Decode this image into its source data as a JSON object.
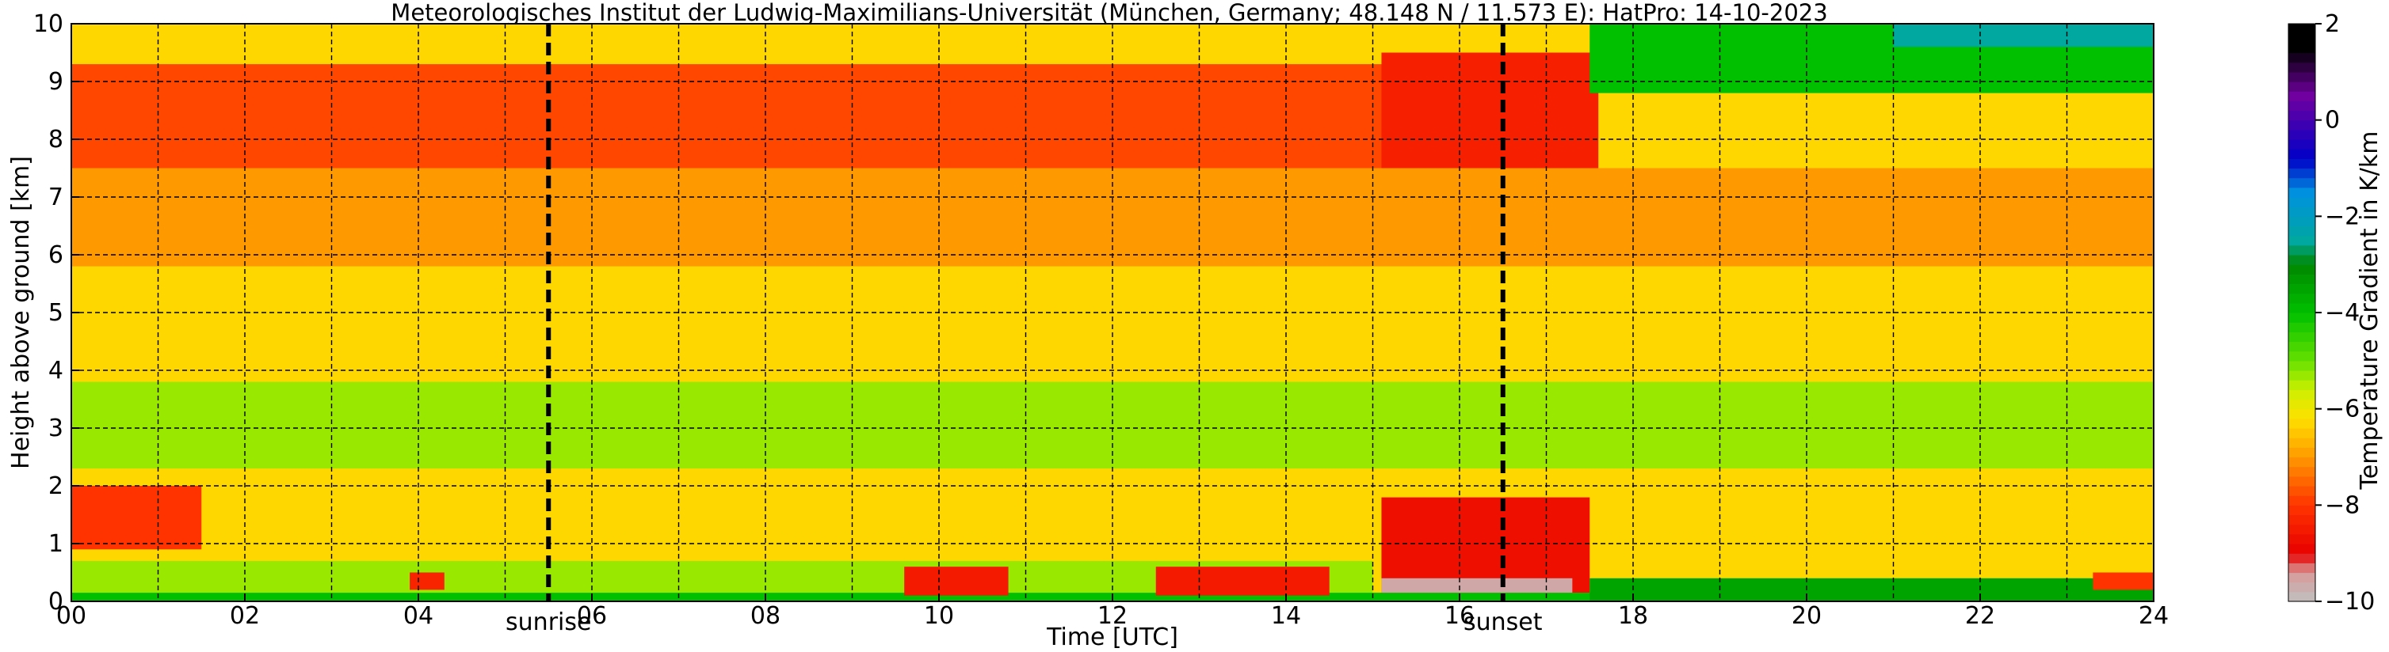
{
  "chart_data": {
    "type": "heatmap",
    "title": "Meteorologisches Institut der Ludwig-Maximilians-Universität (München, Germany; 48.148 N / 11.573 E):    HatPro: 14-10-2023",
    "xlabel": "Time [UTC]",
    "ylabel": "Height above ground [km]",
    "xlim": [
      0,
      24
    ],
    "ylim": [
      0,
      10
    ],
    "x_ticks": [
      "00",
      "02",
      "04",
      "06",
      "08",
      "10",
      "12",
      "14",
      "16",
      "18",
      "20",
      "22",
      "24"
    ],
    "y_ticks": [
      "0",
      "1",
      "2",
      "3",
      "4",
      "5",
      "6",
      "7",
      "8",
      "9",
      "10"
    ],
    "grid": true,
    "markers": [
      {
        "label": "sunrise",
        "x": 5.5
      },
      {
        "label": "sunset",
        "x": 16.5
      }
    ],
    "colorbar": {
      "label": "Temperature Gradient in K/km",
      "range": [
        -10,
        2
      ],
      "ticks": [
        "2",
        "0",
        "−2",
        "−4",
        "−6",
        "−8",
        "−10"
      ],
      "colors": [
        {
          "v": -10,
          "c": "#c0c0c0"
        },
        {
          "v": -9.4,
          "c": "#d89a9a"
        },
        {
          "v": -9.0,
          "c": "#e80000"
        },
        {
          "v": -8.0,
          "c": "#ff3300"
        },
        {
          "v": -7.0,
          "c": "#ff9900"
        },
        {
          "v": -6.2,
          "c": "#ffe000"
        },
        {
          "v": -5.6,
          "c": "#ccf000"
        },
        {
          "v": -5.0,
          "c": "#66e000"
        },
        {
          "v": -4.0,
          "c": "#00c000"
        },
        {
          "v": -3.0,
          "c": "#008800"
        },
        {
          "v": -2.5,
          "c": "#00a8a0"
        },
        {
          "v": -1.5,
          "c": "#0090e0"
        },
        {
          "v": -0.8,
          "c": "#0000c8"
        },
        {
          "v": 0.5,
          "c": "#7000a0"
        },
        {
          "v": 1.5,
          "c": "#000000"
        }
      ]
    },
    "field": {
      "description_of_values": "temperature gradient (K/km) by time (h UTC) and height (km)",
      "regions": [
        {
          "t": [
            0,
            24
          ],
          "h": [
            0,
            10
          ],
          "value": -6.3
        },
        {
          "t": [
            0,
            24
          ],
          "h": [
            0,
            0.15
          ],
          "value": -4.0
        },
        {
          "t": [
            0,
            15
          ],
          "h": [
            0.15,
            0.7
          ],
          "value": -5.3
        },
        {
          "t": [
            0,
            1.5
          ],
          "h": [
            0.9,
            2.0
          ],
          "value": -8.0
        },
        {
          "t": [
            0,
            24
          ],
          "h": [
            2.3,
            3.8
          ],
          "value": -5.3
        },
        {
          "t": [
            0,
            24
          ],
          "h": [
            5.8,
            7.5
          ],
          "value": -7.0
        },
        {
          "t": [
            0,
            17.5
          ],
          "h": [
            7.5,
            9.3
          ],
          "value": -7.8
        },
        {
          "t": [
            3.9,
            4.3
          ],
          "h": [
            0.2,
            0.5
          ],
          "value": -8.3
        },
        {
          "t": [
            9.6,
            10.8
          ],
          "h": [
            0.1,
            0.6
          ],
          "value": -8.5
        },
        {
          "t": [
            12.5,
            14.5
          ],
          "h": [
            0.1,
            0.6
          ],
          "value": -8.5
        },
        {
          "t": [
            15.1,
            17.5
          ],
          "h": [
            0.15,
            1.8
          ],
          "value": -8.7
        },
        {
          "t": [
            15.1,
            17.3
          ],
          "h": [
            0.15,
            0.4
          ],
          "value": -9.6
        },
        {
          "t": [
            15.1,
            17.6
          ],
          "h": [
            7.5,
            9.5
          ],
          "value": -8.4
        },
        {
          "t": [
            17.5,
            24
          ],
          "h": [
            0,
            0.4
          ],
          "value": -3.5
        },
        {
          "t": [
            17.5,
            24
          ],
          "h": [
            8.8,
            10
          ],
          "value": -4.0
        },
        {
          "t": [
            21,
            24
          ],
          "h": [
            9.6,
            10
          ],
          "value": -2.5
        },
        {
          "t": [
            23.3,
            24
          ],
          "h": [
            0.2,
            0.5
          ],
          "value": -8.0
        }
      ]
    }
  }
}
